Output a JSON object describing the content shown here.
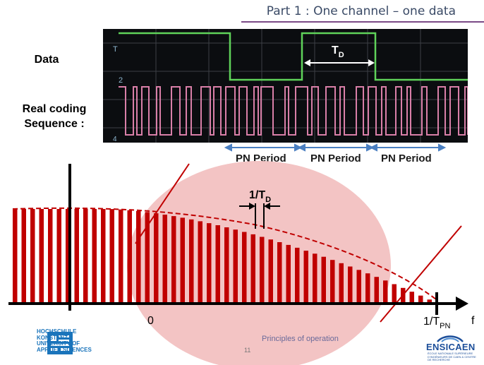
{
  "header": {
    "title": "Part 1 : One channel – one data"
  },
  "labels": {
    "data": "Data",
    "coding_line1": "Real coding",
    "coding_line2": "Sequence :"
  },
  "scope": {
    "td_label": "T",
    "td_sub": "D",
    "trigger_marker": "T",
    "ch2_marker": "2",
    "ch4_marker": "4"
  },
  "pn_periods": [
    "PN Period",
    "PN Period",
    "PN Period"
  ],
  "spectrum": {
    "spacing_label": "1/T",
    "spacing_sub": "D",
    "origin_label": "0",
    "end_label": "1/T",
    "end_sub": "PN",
    "axis_label": "f"
  },
  "footer": {
    "text": "Principles of operation",
    "page": "11"
  },
  "logos": {
    "hochschule": [
      "HOCHSCHULE",
      "KONSTANZ",
      "UNIVERSITY OF",
      "APPLIED SCIENCES"
    ],
    "ensicaen": "ENSICAEN",
    "ensicaen_sub": "ÉCOLE NATIONALE SUPÉRIEURE D'INGÉNIEURS DE CAEN & CENTRE DE RECHERCHE"
  },
  "colors": {
    "data_trace": "#5fd35a",
    "code_trace": "#d97fa8",
    "spectrum_bar": "#c00000",
    "ellipse": "#f3c4c4",
    "arrow_blue": "#4a7fc1",
    "accent_line": "#7a4a86"
  }
}
